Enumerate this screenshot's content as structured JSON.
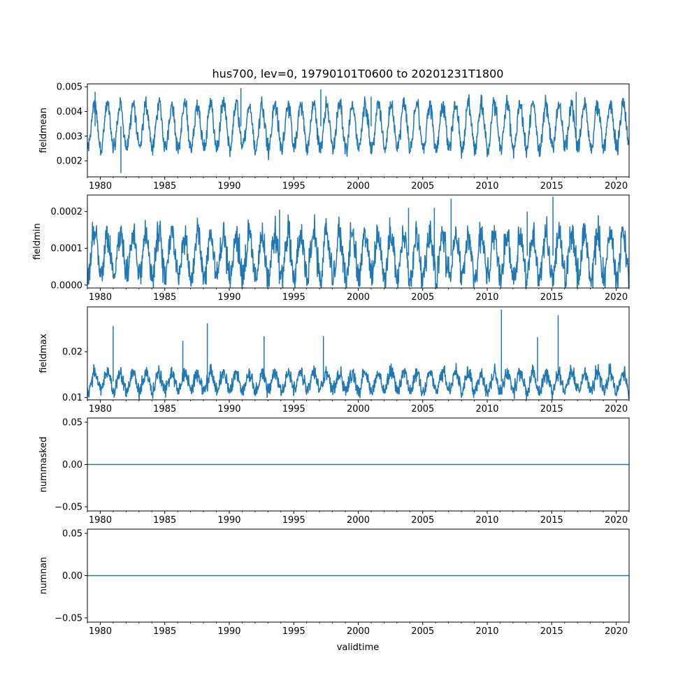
{
  "chart_data": {
    "type": "line",
    "title": "hus700, lev=0, 19790101T0600 to 20201231T1800",
    "xlabel": "validtime",
    "xlim": [
      1979.0,
      2021.0
    ],
    "x_major_ticks": [
      1980,
      1985,
      1990,
      1995,
      2000,
      2005,
      2010,
      2015,
      2020
    ],
    "color": "#1f77b4",
    "panels": [
      {
        "ylabel": "fieldmean",
        "ylim": [
          0.00135,
          0.00512
        ],
        "yticks": [
          0.002,
          0.003,
          0.004,
          0.005
        ],
        "yticklabels": [
          "0.002",
          "0.003",
          "0.004",
          "0.005"
        ],
        "seasonal_peak": 0.0043,
        "seasonal_trough": 0.0025,
        "noise": 0.00025,
        "spikes": [
          [
            1981.6,
            0.0015
          ],
          [
            1990.9,
            0.00495
          ],
          [
            1997.1,
            0.0049
          ],
          [
            2001.0,
            0.0046
          ],
          [
            1979.6,
            0.0048
          ],
          [
            2016.9,
            0.0048
          ]
        ]
      },
      {
        "ylabel": "fieldmin",
        "ylim": [
          -8e-06,
          0.000245
        ],
        "yticks": [
          0.0,
          0.0001,
          0.0002
        ],
        "yticklabels": [
          "0.0000",
          "0.0001",
          "0.0002"
        ],
        "seasonal_peak": 0.00014,
        "seasonal_trough": 2e-05,
        "noise": 3e-05,
        "spikes": [
          [
            2007.2,
            0.000235
          ],
          [
            2015.1,
            0.00024
          ],
          [
            2003.9,
            0.00021
          ],
          [
            2005.9,
            0.00021
          ],
          [
            2013.1,
            0.0002
          ],
          [
            1993.9,
            0.000205
          ]
        ]
      },
      {
        "ylabel": "fieldmax",
        "ylim": [
          0.0095,
          0.0298
        ],
        "yticks": [
          0.01,
          0.02
        ],
        "yticklabels": [
          "0.01",
          "0.02"
        ],
        "seasonal_peak": 0.0155,
        "seasonal_trough": 0.0115,
        "noise": 0.0012,
        "spikes": [
          [
            1981.0,
            0.0256
          ],
          [
            1988.3,
            0.0262
          ],
          [
            2011.1,
            0.0292
          ],
          [
            2015.5,
            0.028
          ],
          [
            2013.9,
            0.0232
          ],
          [
            1986.4,
            0.0224
          ],
          [
            1997.3,
            0.0234
          ],
          [
            1992.7,
            0.0234
          ]
        ]
      },
      {
        "ylabel": "nummasked",
        "ylim": [
          -0.055,
          0.055
        ],
        "yticks": [
          -0.05,
          0.0,
          0.05
        ],
        "yticklabels": [
          "−0.05",
          "0.00",
          "0.05"
        ],
        "constant": 0.0
      },
      {
        "ylabel": "numnan",
        "ylim": [
          -0.055,
          0.055
        ],
        "yticks": [
          -0.05,
          0.0,
          0.05
        ],
        "yticklabels": [
          "−0.05",
          "0.00",
          "0.05"
        ],
        "constant": 0.0
      }
    ]
  }
}
